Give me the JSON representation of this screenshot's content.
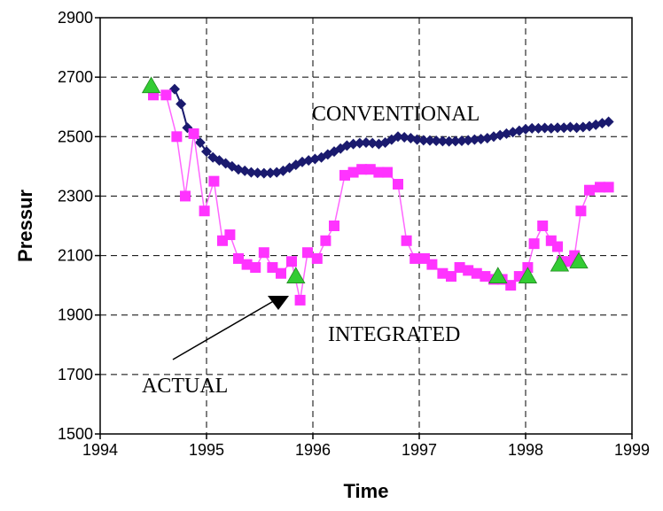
{
  "chart_data": {
    "type": "line",
    "title": "",
    "xlabel": "Time",
    "ylabel": "Pressure",
    "ylabel_visible": "Pressur",
    "xlim": [
      1994,
      1999
    ],
    "ylim": [
      1500,
      2900
    ],
    "x_ticks": [
      "1994",
      "1995",
      "1996",
      "1997",
      "1998",
      "1999"
    ],
    "y_ticks": [
      "1500",
      "1700",
      "1900",
      "2100",
      "2300",
      "2500",
      "2700",
      "2900"
    ],
    "grid": true,
    "annotations": [
      "CONVENTIONAL",
      "INTEGRATED",
      "ACTUAL"
    ],
    "colors": {
      "conventional": "#1a1a6e",
      "integrated": "#ff33ff",
      "integrated_line": "#ff66ff",
      "actual": "#33cc33",
      "arrow": "#000000"
    },
    "series": [
      {
        "name": "CONVENTIONAL",
        "marker": "diamond",
        "x": [
          1994.7,
          1994.76,
          1994.82,
          1994.88,
          1994.94,
          1995.0,
          1995.06,
          1995.12,
          1995.18,
          1995.24,
          1995.3,
          1995.36,
          1995.42,
          1995.48,
          1995.54,
          1995.6,
          1995.66,
          1995.72,
          1995.78,
          1995.84,
          1995.9,
          1995.96,
          1996.02,
          1996.08,
          1996.14,
          1996.2,
          1996.26,
          1996.32,
          1996.38,
          1996.44,
          1996.5,
          1996.56,
          1996.62,
          1996.68,
          1996.74,
          1996.8,
          1996.86,
          1996.92,
          1996.98,
          1997.04,
          1997.1,
          1997.16,
          1997.22,
          1997.28,
          1997.34,
          1997.4,
          1997.46,
          1997.52,
          1997.58,
          1997.64,
          1997.7,
          1997.76,
          1997.82,
          1997.88,
          1997.94,
          1998.0,
          1998.06,
          1998.12,
          1998.18,
          1998.24,
          1998.3,
          1998.36,
          1998.42,
          1998.48,
          1998.54,
          1998.6,
          1998.66,
          1998.72,
          1998.78
        ],
        "y": [
          2660,
          2610,
          2530,
          2510,
          2480,
          2450,
          2430,
          2420,
          2410,
          2400,
          2390,
          2385,
          2380,
          2378,
          2377,
          2378,
          2380,
          2385,
          2395,
          2405,
          2415,
          2420,
          2425,
          2430,
          2440,
          2450,
          2460,
          2470,
          2475,
          2478,
          2480,
          2478,
          2475,
          2480,
          2490,
          2500,
          2498,
          2495,
          2490,
          2488,
          2487,
          2486,
          2485,
          2484,
          2485,
          2486,
          2488,
          2490,
          2492,
          2495,
          2500,
          2505,
          2510,
          2515,
          2520,
          2525,
          2528,
          2528,
          2529,
          2528,
          2530,
          2530,
          2532,
          2530,
          2532,
          2535,
          2540,
          2545,
          2550
        ]
      },
      {
        "name": "INTEGRATED",
        "marker": "square",
        "x": [
          1994.5,
          1994.62,
          1994.72,
          1994.8,
          1994.88,
          1994.98,
          1995.07,
          1995.15,
          1995.22,
          1995.3,
          1995.38,
          1995.46,
          1995.54,
          1995.62,
          1995.7,
          1995.8,
          1995.88,
          1995.95,
          1996.04,
          1996.12,
          1996.2,
          1996.3,
          1996.38,
          1996.46,
          1996.54,
          1996.62,
          1996.7,
          1996.8,
          1996.88,
          1996.96,
          1997.05,
          1997.12,
          1997.22,
          1997.3,
          1997.38,
          1997.46,
          1997.54,
          1997.62,
          1997.7,
          1997.78,
          1997.86,
          1997.94,
          1998.02,
          1998.08,
          1998.16,
          1998.24,
          1998.3,
          1998.34,
          1998.4,
          1998.46,
          1998.52,
          1998.6,
          1998.7,
          1998.78
        ],
        "y": [
          2640,
          2640,
          2500,
          2300,
          2510,
          2250,
          2350,
          2150,
          2170,
          2090,
          2070,
          2060,
          2110,
          2060,
          2040,
          2080,
          1950,
          2110,
          2090,
          2150,
          2200,
          2370,
          2380,
          2390,
          2390,
          2380,
          2380,
          2340,
          2150,
          2090,
          2090,
          2070,
          2040,
          2030,
          2060,
          2050,
          2040,
          2030,
          2020,
          2020,
          2000,
          2030,
          2060,
          2140,
          2200,
          2150,
          2130,
          2080,
          2080,
          2100,
          2250,
          2320,
          2330,
          2330
        ]
      },
      {
        "name": "ACTUAL",
        "marker": "triangle",
        "x": [
          1994.48,
          1995.84,
          1997.74,
          1998.02,
          1998.32,
          1998.5
        ],
        "y": [
          2670,
          2030,
          2030,
          2030,
          2070,
          2080
        ]
      }
    ]
  }
}
